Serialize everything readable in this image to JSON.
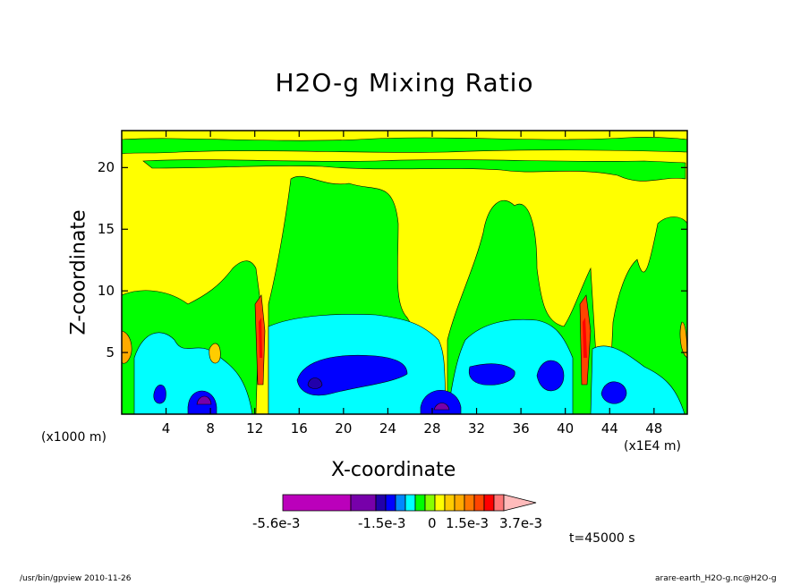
{
  "chart_data": {
    "type": "heatmap",
    "title": "H2O-g Mixing Ratio",
    "xlabel": "X-coordinate",
    "ylabel": "Z-coordinate",
    "x_unit_left": "(x1000 m)",
    "x_unit_right": "(x1E4 m)",
    "x_ticks": [
      "4",
      "8",
      "12",
      "16",
      "20",
      "24",
      "28",
      "32",
      "36",
      "40",
      "44",
      "48"
    ],
    "y_ticks": [
      "5",
      "10",
      "15",
      "20"
    ],
    "xlim": [
      0,
      51
    ],
    "ylim": [
      0,
      23
    ],
    "colorbar": {
      "colors": [
        "#bb00bb",
        "#7700aa",
        "#2200aa",
        "#0000ff",
        "#0088ff",
        "#00ffff",
        "#00ff00",
        "#88ff00",
        "#ffff00",
        "#ffcc00",
        "#ffaa00",
        "#ff7700",
        "#ff4400",
        "#ff0000",
        "#ff7777",
        "#ffbbbb"
      ],
      "labels": [
        "-5.6e-3",
        "-1.5e-3",
        "0",
        "1.5e-3",
        "3.7e-3"
      ]
    },
    "time_label": "t=45000 s",
    "footer_left": "/usr/bin/gpview   2010-11-26",
    "footer_right": "arare-earth_H2O-g.nc@H2O-g"
  }
}
